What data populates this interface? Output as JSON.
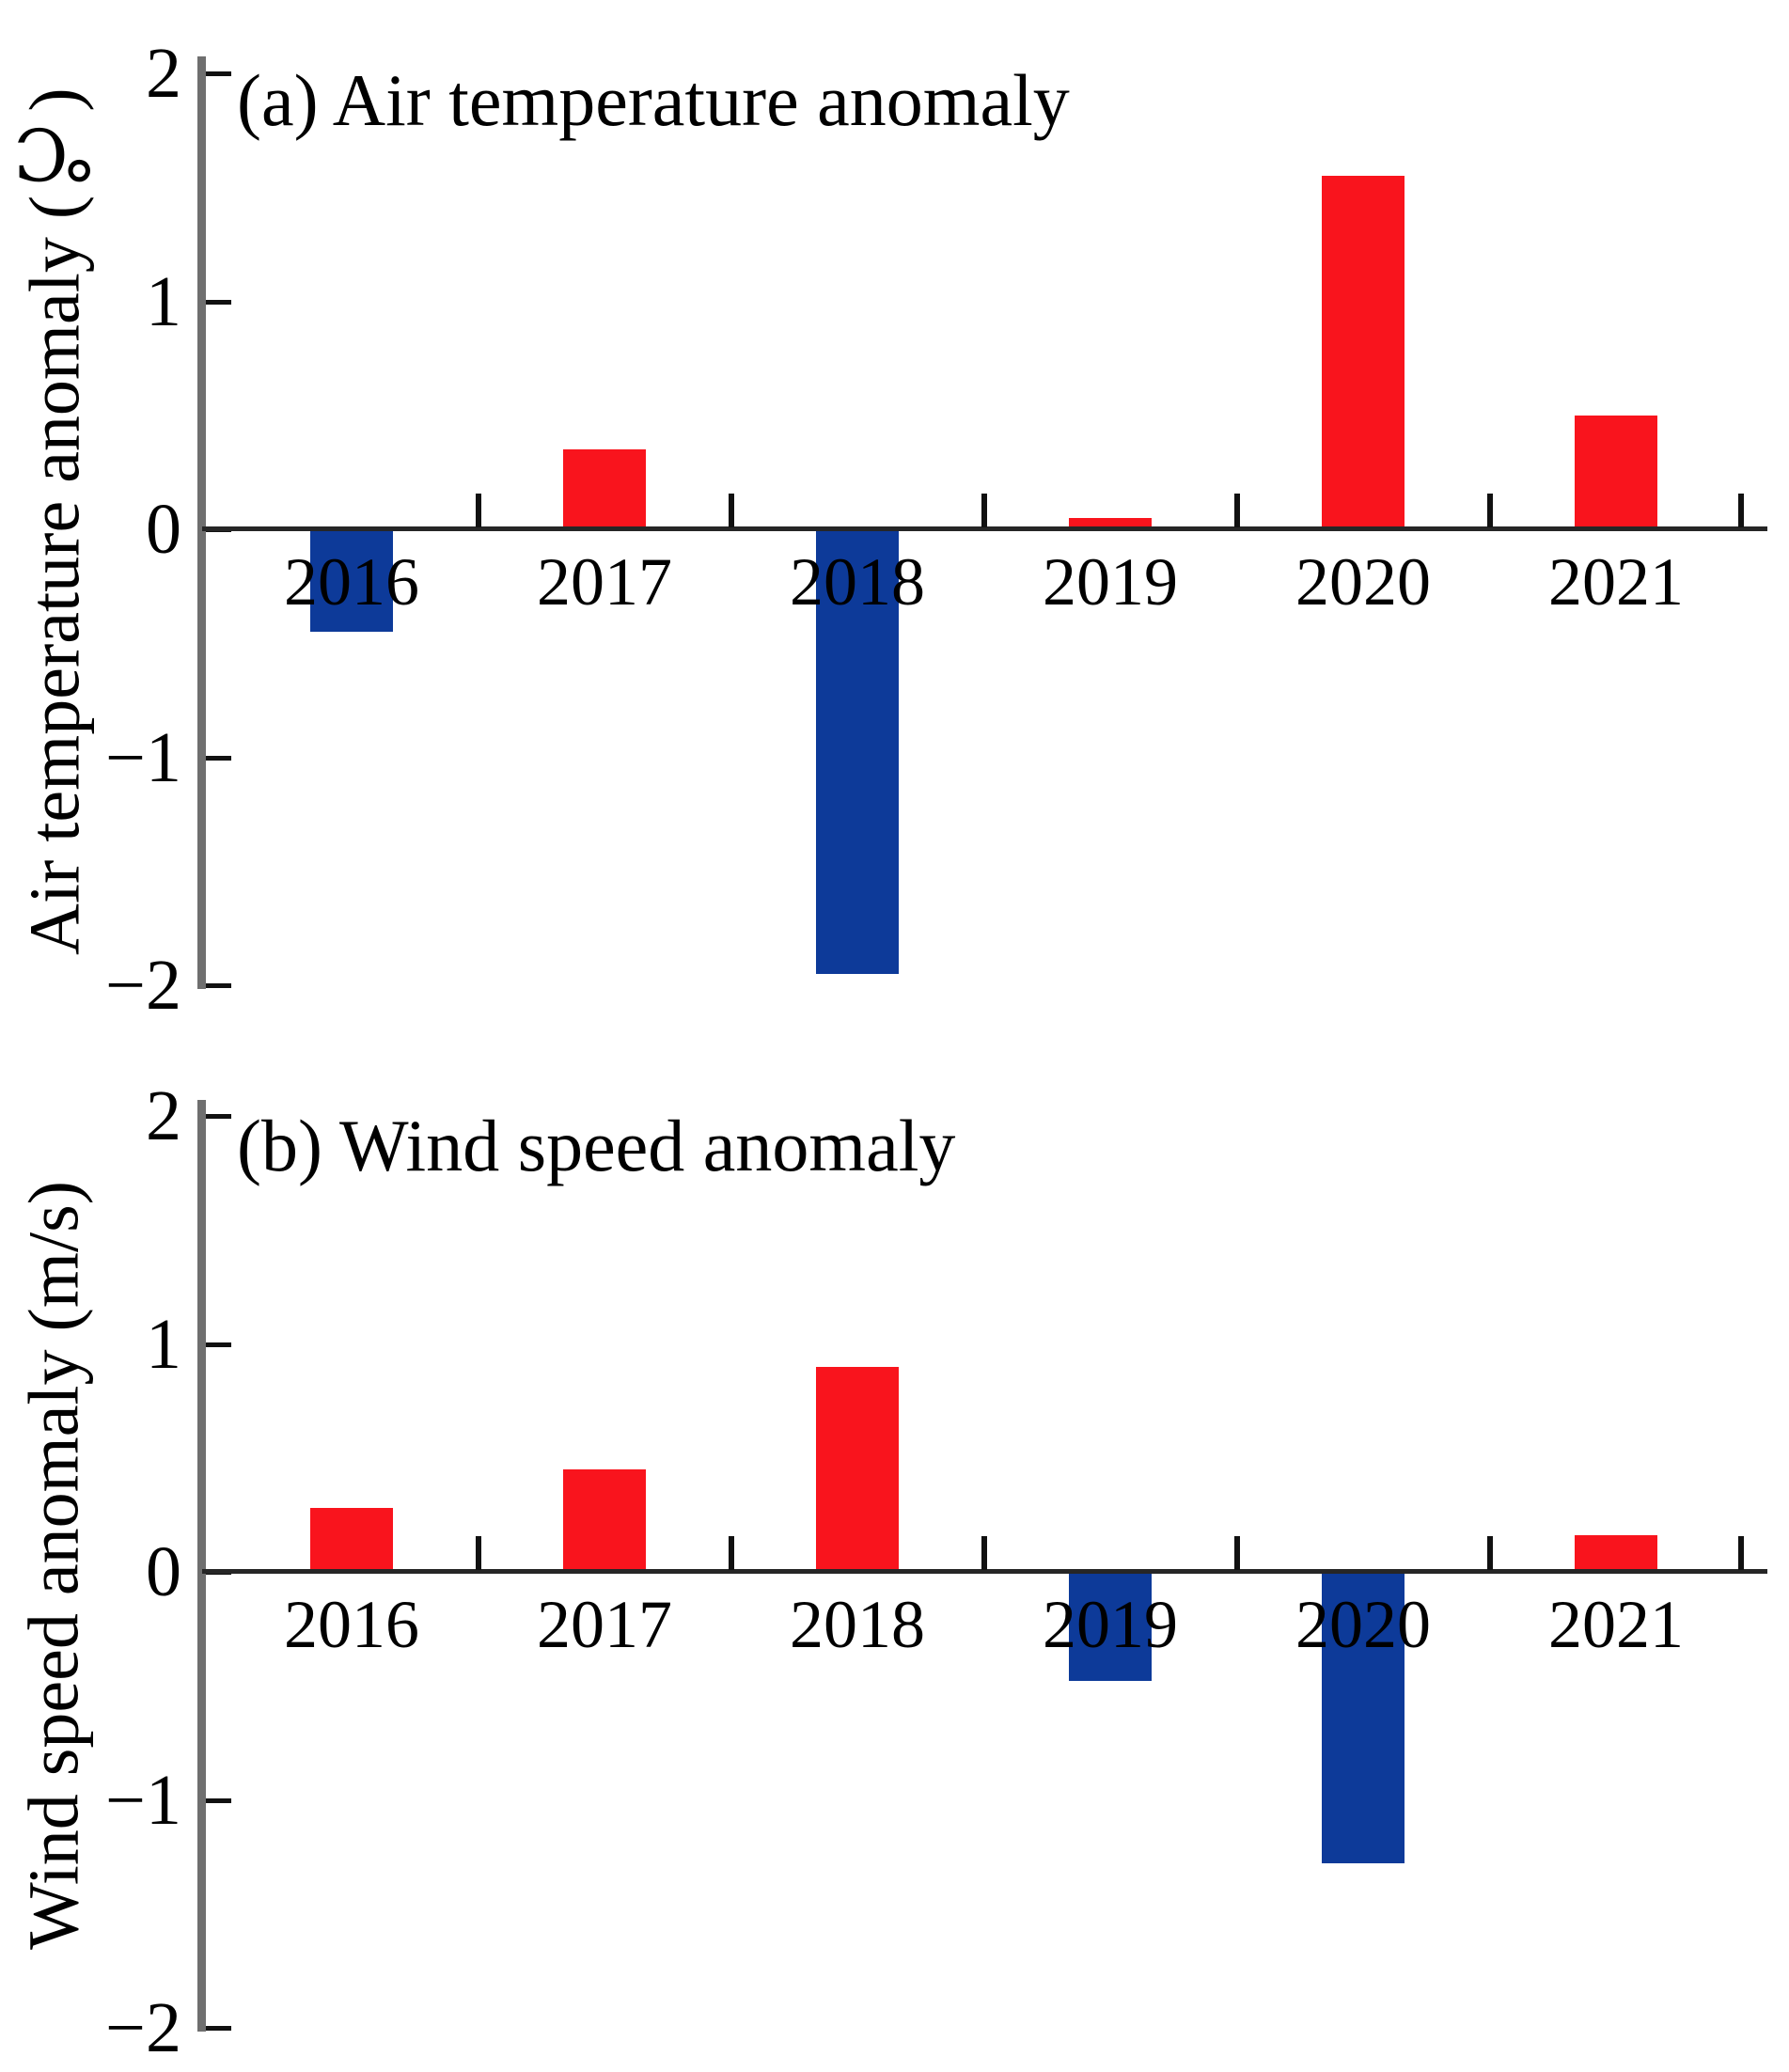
{
  "colors": {
    "positive_bar": "#F9141D",
    "negative_bar": "#0D3A99",
    "yaxis_line": "#6F6F6F",
    "baseline": "#262626",
    "tick": "#111111",
    "text": "#000000",
    "background": "#FFFFFF"
  },
  "chart_data": [
    {
      "type": "bar",
      "title": "(a) Air temperature anomaly",
      "ylabel": "Air temperature anomaly (℃)",
      "xlabel": "",
      "categories": [
        "2016",
        "2017",
        "2018",
        "2019",
        "2020",
        "2021"
      ],
      "values": [
        -0.45,
        0.35,
        -1.95,
        0.05,
        1.55,
        0.5
      ],
      "ylim": [
        -2,
        2
      ],
      "yticks": [
        2,
        1,
        0,
        -1,
        -2
      ],
      "ytick_labels": [
        "2",
        "1",
        "0",
        "−1",
        "−2"
      ],
      "positive_color": "#F9141D",
      "negative_color": "#0D3A99",
      "grid": false,
      "legend": null
    },
    {
      "type": "bar",
      "title": "(b) Wind speed anomaly",
      "ylabel": "Wind speed anomaly (m/s)",
      "xlabel": "",
      "categories": [
        "2016",
        "2017",
        "2018",
        "2019",
        "2020",
        "2021"
      ],
      "values": [
        0.28,
        0.45,
        0.9,
        -0.48,
        -1.28,
        0.16
      ],
      "ylim": [
        -2,
        2
      ],
      "yticks": [
        2,
        1,
        0,
        -1,
        -2
      ],
      "ytick_labels": [
        "2",
        "1",
        "0",
        "−1",
        "−2"
      ],
      "positive_color": "#F9141D",
      "negative_color": "#0D3A99",
      "grid": false,
      "legend": null
    }
  ]
}
